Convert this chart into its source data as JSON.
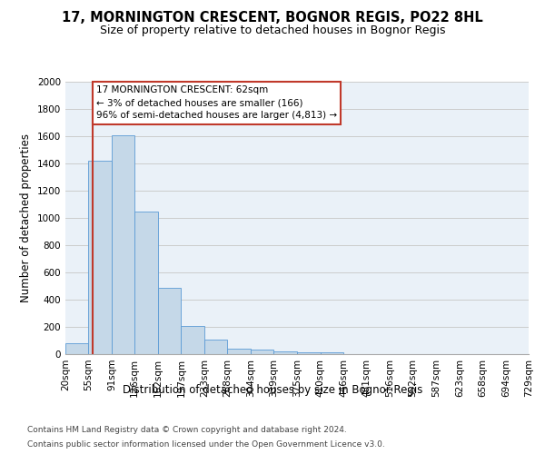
{
  "title": "17, MORNINGTON CRESCENT, BOGNOR REGIS, PO22 8HL",
  "subtitle": "Size of property relative to detached houses in Bognor Regis",
  "xlabel": "Distribution of detached houses by size in Bognor Regis",
  "ylabel": "Number of detached properties",
  "footer_line1": "Contains HM Land Registry data © Crown copyright and database right 2024.",
  "footer_line2": "Contains public sector information licensed under the Open Government Licence v3.0.",
  "annotation_line1": "17 MORNINGTON CRESCENT: 62sqm",
  "annotation_line2": "← 3% of detached houses are smaller (166)",
  "annotation_line3": "96% of semi-detached houses are larger (4,813) →",
  "bar_color": "#c5d8e8",
  "bar_edge_color": "#5b9bd5",
  "vline_color": "#c0392b",
  "vline_x": 62,
  "annotation_box_color": "#c0392b",
  "bin_edges": [
    20,
    55,
    91,
    126,
    162,
    197,
    233,
    268,
    304,
    339,
    375,
    410,
    446,
    481,
    516,
    552,
    587,
    623,
    658,
    694,
    729
  ],
  "bar_heights": [
    80,
    1420,
    1610,
    1050,
    490,
    205,
    105,
    42,
    35,
    22,
    15,
    12,
    0,
    0,
    0,
    0,
    0,
    0,
    0,
    0
  ],
  "ylim": [
    0,
    2000
  ],
  "yticks": [
    0,
    200,
    400,
    600,
    800,
    1000,
    1200,
    1400,
    1600,
    1800,
    2000
  ],
  "grid_color": "#cccccc",
  "bg_color": "#eaf1f8",
  "title_fontsize": 10.5,
  "subtitle_fontsize": 9,
  "ylabel_fontsize": 8.5,
  "xlabel_fontsize": 8.5,
  "tick_fontsize": 7.5,
  "annotation_fontsize": 7.5,
  "footer_fontsize": 6.5
}
